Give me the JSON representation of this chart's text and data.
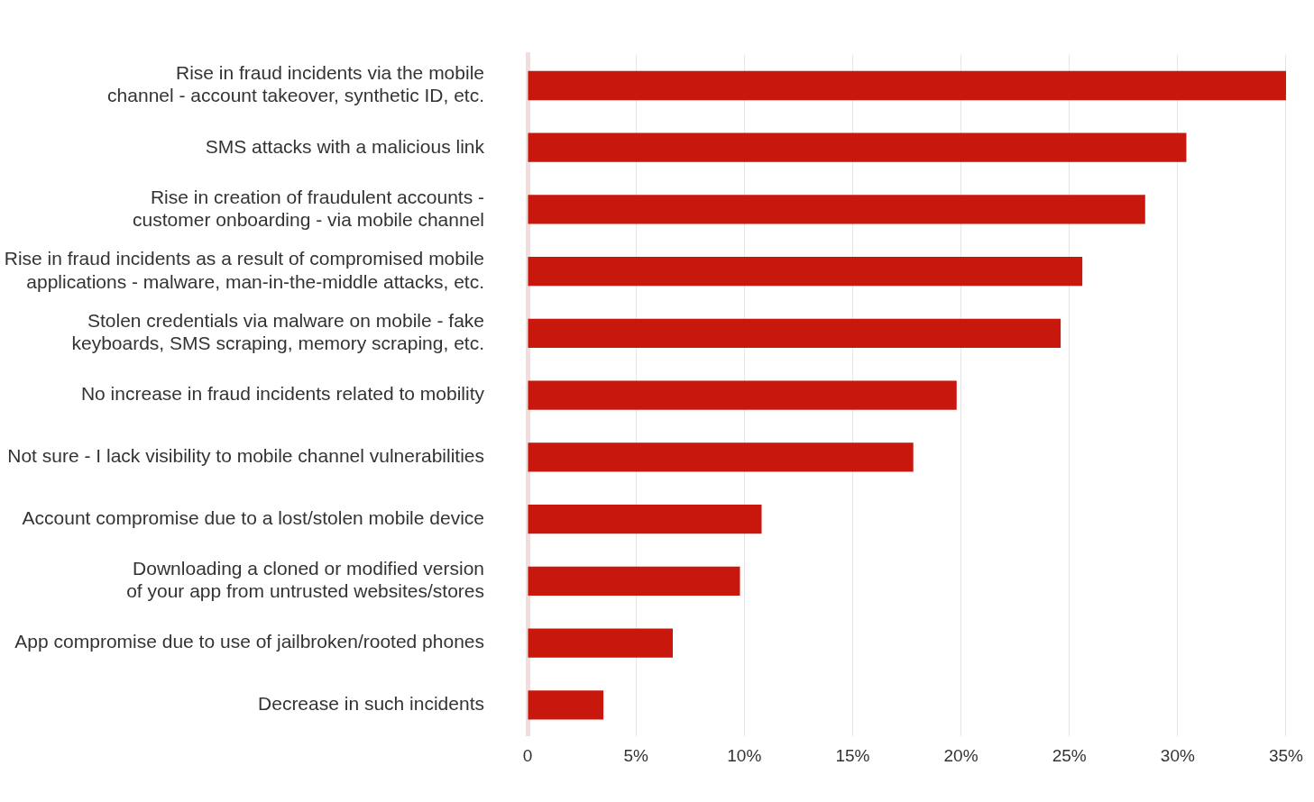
{
  "chart_data": {
    "type": "bar",
    "orientation": "horizontal",
    "categories": [
      "Rise in fraud incidents via the mobile channel - account takeover, synthetic ID, etc.",
      "SMS attacks with a malicious link",
      "Rise in creation of fraudulent accounts - customer onboarding - via mobile channel",
      "Rise in fraud incidents as a result of compromised mobile applications - malware, man-in-the-middle attacks, etc.",
      "Stolen credentials via malware on mobile - fake keyboards, SMS scraping, memory scraping, etc.",
      "No increase in fraud incidents related to mobility",
      "Not sure - I lack visibility to mobile channel vulnerabilities",
      "Account compromise due to a lost/stolen mobile device",
      "Downloading a cloned or modified version of your app from untrusted websites/stores",
      "App compromise due to use of jailbroken/rooted phones",
      "Decrease in such incidents"
    ],
    "values": [
      35,
      30.4,
      28.5,
      25.6,
      24.6,
      19.8,
      17.8,
      10.8,
      9.8,
      6.7,
      3.5
    ],
    "color": "#c8170d",
    "xlim": [
      0,
      35
    ],
    "xticks": [
      0,
      {
        "value": 5,
        "label": "5%"
      },
      {
        "value": 10,
        "label": "10%"
      },
      {
        "value": 15,
        "label": "15%"
      },
      {
        "value": 20,
        "label": "20%"
      },
      {
        "value": 25,
        "label": "25%"
      },
      {
        "value": 30,
        "label": "30%"
      },
      {
        "value": 35,
        "label": "35%"
      }
    ],
    "grid": "x"
  }
}
